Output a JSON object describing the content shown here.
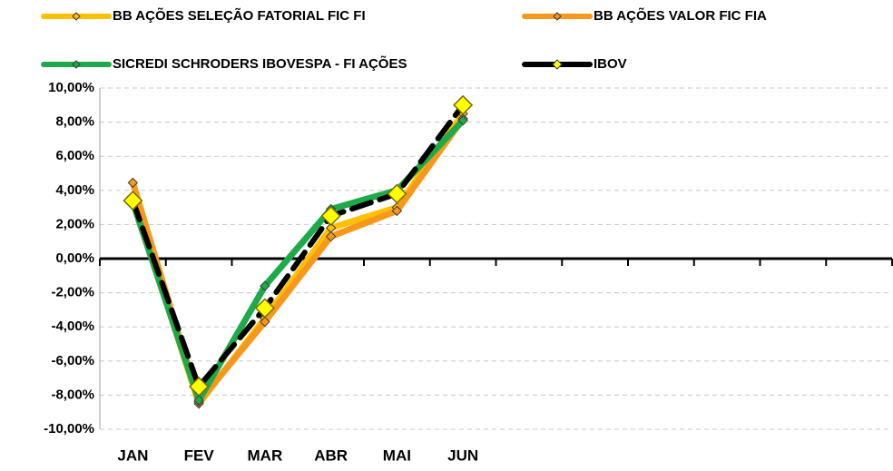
{
  "chart_data": {
    "type": "line",
    "categories": [
      "JAN",
      "FEV",
      "MAR",
      "ABR",
      "MAI",
      "JUN",
      null,
      null,
      null,
      null,
      null,
      null
    ],
    "series": [
      {
        "name": "BB AÇÕES SELEÇÃO FATORIAL FIC FI",
        "color": "#FFC000",
        "marker_color": "#FFC000",
        "values": [
          3.6,
          -8.5,
          -3.5,
          1.8,
          3.0,
          8.5,
          null,
          null,
          null,
          null,
          null,
          null
        ]
      },
      {
        "name": "BB AÇÕES VALOR FIC FIA",
        "color": "#F7981D",
        "marker_color": "#F7981D",
        "values": [
          4.45,
          -8.4,
          -3.7,
          1.3,
          2.8,
          8.2,
          null,
          null,
          null,
          null,
          null,
          null
        ]
      },
      {
        "name": "SICREDI SCHRODERS IBOVESPA - FI AÇÕES",
        "color": "#1EAA4B",
        "marker_color": "#1EAA4B",
        "values": [
          3.3,
          -8.3,
          -1.6,
          2.9,
          4.0,
          8.1,
          null,
          null,
          null,
          null,
          null,
          null
        ]
      },
      {
        "name": "IBOV",
        "color": "#000000",
        "marker_color": "#FFFF00",
        "line_style": "dashed",
        "values": [
          3.4,
          -7.5,
          -2.9,
          2.5,
          3.8,
          9.0,
          null,
          null,
          null,
          null,
          null,
          null
        ]
      }
    ],
    "ylim": [
      -10,
      10
    ],
    "yticks": [
      {
        "value": -10,
        "label": "-10,00%"
      },
      {
        "value": -8,
        "label": "-8,00%"
      },
      {
        "value": -6,
        "label": "-6,00%"
      },
      {
        "value": -4,
        "label": "-4,00%"
      },
      {
        "value": -2,
        "label": "-2,00%"
      },
      {
        "value": 0,
        "label": "0,00%"
      },
      {
        "value": 2,
        "label": "2,00%"
      },
      {
        "value": 4,
        "label": "4,00%"
      },
      {
        "value": 6,
        "label": "6,00%"
      },
      {
        "value": 8,
        "label": "8,00%"
      },
      {
        "value": 10,
        "label": "10,00%"
      }
    ],
    "grid": true,
    "legend": "top"
  }
}
